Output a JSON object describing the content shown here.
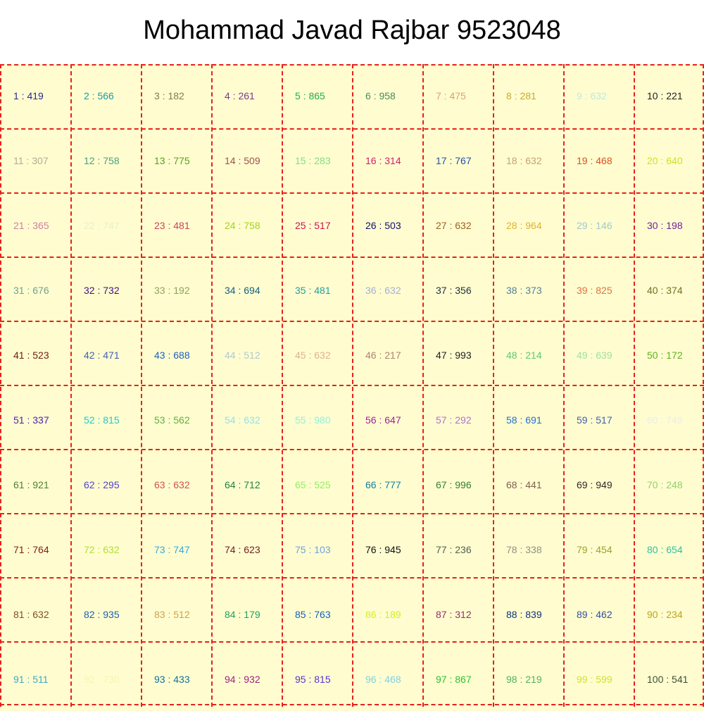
{
  "title": "Mohammad Javad Rajbar 9523048",
  "cells": [
    {
      "text": "1 : 419",
      "color": "#2a2a8a"
    },
    {
      "text": "2 : 566",
      "color": "#1f9aa8"
    },
    {
      "text": "3 : 182",
      "color": "#8a7a45"
    },
    {
      "text": "4 : 261",
      "color": "#7a3a8a"
    },
    {
      "text": "5 : 865",
      "color": "#1fb04a"
    },
    {
      "text": "6 : 958",
      "color": "#4a8a5a"
    },
    {
      "text": "7 : 475",
      "color": "#d9a070"
    },
    {
      "text": "8 : 281",
      "color": "#c8a830"
    },
    {
      "text": "9 : 632",
      "color": "#bfe8e0"
    },
    {
      "text": "10 : 221",
      "color": "#202020"
    },
    {
      "text": "11 : 307",
      "color": "#b8a890"
    },
    {
      "text": "12 : 758",
      "color": "#4aa080"
    },
    {
      "text": "13 : 775",
      "color": "#5aa020"
    },
    {
      "text": "14 : 509",
      "color": "#a05050"
    },
    {
      "text": "15 : 283",
      "color": "#80e080"
    },
    {
      "text": "16 : 314",
      "color": "#d02070"
    },
    {
      "text": "17 : 767",
      "color": "#2050b0"
    },
    {
      "text": "18 : 632",
      "color": "#c8a070"
    },
    {
      "text": "19 : 468",
      "color": "#d85020"
    },
    {
      "text": "20 : 640",
      "color": "#d0e020"
    },
    {
      "text": "21 : 365",
      "color": "#d080a0"
    },
    {
      "text": "22 : 747",
      "color": "#e8f0c8"
    },
    {
      "text": "23 : 481",
      "color": "#d04060"
    },
    {
      "text": "24 : 758",
      "color": "#a8d020"
    },
    {
      "text": "25 : 517",
      "color": "#d01050"
    },
    {
      "text": "26 : 503",
      "color": "#101070"
    },
    {
      "text": "27 : 632",
      "color": "#a06020"
    },
    {
      "text": "28 : 964",
      "color": "#e0b030"
    },
    {
      "text": "29 : 146",
      "color": "#a0c8d0"
    },
    {
      "text": "30 : 198",
      "color": "#7020a0"
    },
    {
      "text": "31 : 676",
      "color": "#70a090"
    },
    {
      "text": "32 : 732",
      "color": "#401080"
    },
    {
      "text": "33 : 192",
      "color": "#90a060"
    },
    {
      "text": "34 : 694",
      "color": "#106080"
    },
    {
      "text": "35 : 481",
      "color": "#20a0a0"
    },
    {
      "text": "36 : 632",
      "color": "#a0b0d8"
    },
    {
      "text": "37 : 356",
      "color": "#203040"
    },
    {
      "text": "38 : 373",
      "color": "#5080a0"
    },
    {
      "text": "39 : 825",
      "color": "#e07040"
    },
    {
      "text": "40 : 374",
      "color": "#707020"
    },
    {
      "text": "41 : 523",
      "color": "#702010"
    },
    {
      "text": "42 : 471",
      "color": "#4060b0"
    },
    {
      "text": "43 : 688",
      "color": "#2060c0"
    },
    {
      "text": "44 : 512",
      "color": "#b0c8d0"
    },
    {
      "text": "45 : 632",
      "color": "#e0b090"
    },
    {
      "text": "46 : 217",
      "color": "#b08070"
    },
    {
      "text": "47 : 993",
      "color": "#202020"
    },
    {
      "text": "48 : 214",
      "color": "#60c870"
    },
    {
      "text": "49 : 639",
      "color": "#a0e0a0"
    },
    {
      "text": "50 : 172",
      "color": "#60b020"
    },
    {
      "text": "51 : 337",
      "color": "#5020b0"
    },
    {
      "text": "52 : 815",
      "color": "#20c8d0"
    },
    {
      "text": "53 : 562",
      "color": "#60b040"
    },
    {
      "text": "54 : 632",
      "color": "#90e0f0"
    },
    {
      "text": "55 : 980",
      "color": "#90f0e0"
    },
    {
      "text": "56 : 647",
      "color": "#a020a0"
    },
    {
      "text": "57 : 292",
      "color": "#b070d0"
    },
    {
      "text": "58 : 691",
      "color": "#2070d0"
    },
    {
      "text": "59 : 517",
      "color": "#4060b0"
    },
    {
      "text": "60 : 749",
      "color": "#e8ecf0"
    },
    {
      "text": "61 : 921",
      "color": "#508030"
    },
    {
      "text": "62 : 295",
      "color": "#5040d0"
    },
    {
      "text": "63 : 632",
      "color": "#d05050"
    },
    {
      "text": "64 : 712",
      "color": "#208040"
    },
    {
      "text": "65 : 525",
      "color": "#90f060"
    },
    {
      "text": "66 : 777",
      "color": "#1080a0"
    },
    {
      "text": "67 : 996",
      "color": "#308030"
    },
    {
      "text": "68 : 441",
      "color": "#806050"
    },
    {
      "text": "69 : 949",
      "color": "#302828"
    },
    {
      "text": "70 : 248",
      "color": "#90d070"
    },
    {
      "text": "71 : 764",
      "color": "#802010"
    },
    {
      "text": "72 : 632",
      "color": "#b0e030"
    },
    {
      "text": "73 : 747",
      "color": "#30a8e0"
    },
    {
      "text": "74 : 623",
      "color": "#702020"
    },
    {
      "text": "75 : 103",
      "color": "#70a0e0"
    },
    {
      "text": "76 : 945",
      "color": "#101010"
    },
    {
      "text": "77 : 236",
      "color": "#506050"
    },
    {
      "text": "78 : 338",
      "color": "#909080"
    },
    {
      "text": "79 : 454",
      "color": "#a0a030"
    },
    {
      "text": "80 : 654",
      "color": "#30c0a0"
    },
    {
      "text": "81 : 632",
      "color": "#805020"
    },
    {
      "text": "82 : 935",
      "color": "#2060b0"
    },
    {
      "text": "83 : 512",
      "color": "#d0a050"
    },
    {
      "text": "84 : 179",
      "color": "#20a060"
    },
    {
      "text": "85 : 763",
      "color": "#1060c0"
    },
    {
      "text": "86 : 189",
      "color": "#d0f020"
    },
    {
      "text": "87 : 312",
      "color": "#903070"
    },
    {
      "text": "88 : 839",
      "color": "#103080"
    },
    {
      "text": "89 : 462",
      "color": "#3050a0"
    },
    {
      "text": "90 : 234",
      "color": "#c0a020"
    },
    {
      "text": "91 : 511",
      "color": "#40a8c0"
    },
    {
      "text": "92 : 730",
      "color": "#f0f8b0"
    },
    {
      "text": "93 : 433",
      "color": "#1070a0"
    },
    {
      "text": "94 : 932",
      "color": "#a02080"
    },
    {
      "text": "95 : 815",
      "color": "#6030d0"
    },
    {
      "text": "96 : 468",
      "color": "#80d0e0"
    },
    {
      "text": "97 : 867",
      "color": "#30c030"
    },
    {
      "text": "98 : 219",
      "color": "#50b060"
    },
    {
      "text": "99 : 599",
      "color": "#d0e030"
    },
    {
      "text": "100 : 541",
      "color": "#405030"
    }
  ],
  "colors": {
    "cell_background": "#fffdd0",
    "grid_line": "#e8201c",
    "title_text": "#000000"
  }
}
